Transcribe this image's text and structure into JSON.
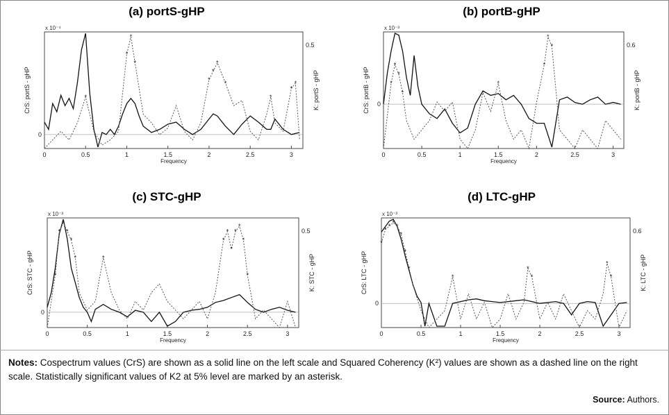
{
  "panels": [
    {
      "title": "(a) portS-gHP",
      "left_label": "CrS: portS - gHP",
      "right_label": "K: portS - gHP",
      "scale_label": "x 10⁻⁴",
      "xlabel": "Frequency",
      "zero_tick": "0",
      "right_tick": "0.5",
      "chart_data": {
        "type": "line",
        "xlabel": "Frequency",
        "xlim": [
          0,
          3.14
        ],
        "xticks": [
          "0",
          "0.5",
          "1",
          "1.5",
          "2",
          "2.5",
          "3"
        ],
        "series": [
          {
            "name": "CrS",
            "style": "solid",
            "x": [
              0.0,
              0.05,
              0.1,
              0.15,
              0.2,
              0.25,
              0.3,
              0.35,
              0.4,
              0.45,
              0.5,
              0.55,
              0.6,
              0.65,
              0.7,
              0.75,
              0.8,
              0.85,
              0.9,
              0.95,
              1.0,
              1.05,
              1.1,
              1.15,
              1.2,
              1.3,
              1.4,
              1.5,
              1.6,
              1.7,
              1.8,
              1.9,
              2.0,
              2.05,
              2.1,
              2.2,
              2.3,
              2.4,
              2.5,
              2.6,
              2.7,
              2.75,
              2.8,
              2.9,
              3.0,
              3.1
            ],
            "y": [
              0.12,
              0.05,
              0.3,
              0.22,
              0.38,
              0.28,
              0.35,
              0.25,
              0.5,
              0.82,
              0.98,
              0.4,
              0.05,
              -0.05,
              0.02,
              0.0,
              0.05,
              0.0,
              0.08,
              0.2,
              0.3,
              0.35,
              0.3,
              0.18,
              0.08,
              0.02,
              0.05,
              0.1,
              0.12,
              0.05,
              0.0,
              0.05,
              0.15,
              0.2,
              0.18,
              0.08,
              0.0,
              0.1,
              0.18,
              0.12,
              0.05,
              0.05,
              0.15,
              0.05,
              0.0,
              0.02
            ]
          },
          {
            "name": "K²",
            "style": "dashed",
            "x": [
              0.0,
              0.1,
              0.2,
              0.3,
              0.4,
              0.5,
              0.6,
              0.7,
              0.8,
              0.9,
              1.0,
              1.05,
              1.1,
              1.2,
              1.3,
              1.4,
              1.5,
              1.6,
              1.7,
              1.8,
              1.9,
              2.0,
              2.05,
              2.1,
              2.2,
              2.3,
              2.4,
              2.5,
              2.6,
              2.7,
              2.75,
              2.8,
              2.9,
              3.0,
              3.05,
              3.1
            ],
            "y": [
              0.0,
              0.05,
              0.1,
              0.05,
              0.15,
              0.3,
              0.1,
              0.02,
              0.05,
              0.1,
              0.55,
              0.65,
              0.5,
              0.2,
              0.15,
              0.08,
              0.12,
              0.25,
              0.1,
              0.05,
              0.15,
              0.4,
              0.45,
              0.5,
              0.38,
              0.25,
              0.28,
              0.1,
              0.05,
              0.2,
              0.3,
              0.15,
              0.1,
              0.35,
              0.38,
              0.05
            ]
          }
        ]
      }
    },
    {
      "title": "(b) portB-gHP",
      "left_label": "CrS: portB - gHP",
      "right_label": "K: portB - gHP",
      "scale_label": "x 10⁻³",
      "xlabel": "Frequency",
      "zero_tick": "0",
      "right_tick": "0.6",
      "chart_data": {
        "type": "line",
        "xlabel": "Frequency",
        "xlim": [
          0,
          3.14
        ],
        "xticks": [
          "0",
          "0.5",
          "1",
          "1.5",
          "2",
          "2.5",
          "3"
        ],
        "series": [
          {
            "name": "CrS",
            "style": "solid",
            "x": [
              0.0,
              0.05,
              0.1,
              0.15,
              0.2,
              0.25,
              0.3,
              0.35,
              0.4,
              0.45,
              0.5,
              0.6,
              0.7,
              0.8,
              0.9,
              1.0,
              1.1,
              1.2,
              1.3,
              1.4,
              1.5,
              1.6,
              1.7,
              1.8,
              1.9,
              2.0,
              2.1,
              2.2,
              2.3,
              2.4,
              2.5,
              2.6,
              2.7,
              2.8,
              2.9,
              3.0,
              3.1
            ],
            "y": [
              0.0,
              0.35,
              0.6,
              0.8,
              0.78,
              0.6,
              0.3,
              0.1,
              0.55,
              0.2,
              0.0,
              -0.1,
              -0.15,
              -0.05,
              -0.2,
              -0.3,
              -0.25,
              0.0,
              0.15,
              0.1,
              0.12,
              0.05,
              0.1,
              0.0,
              -0.15,
              -0.2,
              -0.2,
              -0.45,
              0.05,
              0.08,
              0.02,
              0.0,
              0.05,
              0.08,
              0.0,
              0.02,
              0.0
            ]
          },
          {
            "name": "K²",
            "style": "dashed",
            "x": [
              0.0,
              0.1,
              0.15,
              0.2,
              0.25,
              0.3,
              0.4,
              0.5,
              0.6,
              0.7,
              0.8,
              0.9,
              1.0,
              1.1,
              1.2,
              1.3,
              1.4,
              1.5,
              1.6,
              1.7,
              1.8,
              1.9,
              2.0,
              2.1,
              2.15,
              2.2,
              2.3,
              2.4,
              2.5,
              2.6,
              2.7,
              2.8,
              2.9,
              3.0,
              3.1
            ],
            "y": [
              0.0,
              0.35,
              0.45,
              0.4,
              0.3,
              0.15,
              0.05,
              0.1,
              0.15,
              0.25,
              0.2,
              0.25,
              0.05,
              0.0,
              0.1,
              0.3,
              0.2,
              0.35,
              0.15,
              0.05,
              0.1,
              0.0,
              0.25,
              0.45,
              0.6,
              0.55,
              0.1,
              0.05,
              0.0,
              0.1,
              0.05,
              0.0,
              0.15,
              0.1,
              0.05
            ]
          }
        ]
      }
    },
    {
      "title": "(c) STC-gHP",
      "left_label": "CrS: STC - gHP",
      "right_label": "K: STC - gHP",
      "scale_label": "x 10⁻³",
      "xlabel": "Frequency",
      "zero_tick": "0",
      "right_tick": "0.5",
      "chart_data": {
        "type": "line",
        "xlabel": "Frequency",
        "xlim": [
          0,
          3.14
        ],
        "xticks": [
          "0",
          "0.5",
          "1",
          "1.5",
          "2",
          "2.5",
          "3"
        ],
        "series": [
          {
            "name": "CrS",
            "style": "solid",
            "x": [
              0.0,
              0.05,
              0.1,
              0.15,
              0.2,
              0.25,
              0.3,
              0.35,
              0.4,
              0.45,
              0.5,
              0.55,
              0.6,
              0.7,
              0.8,
              0.9,
              1.0,
              1.1,
              1.2,
              1.3,
              1.4,
              1.5,
              1.6,
              1.7,
              1.8,
              1.9,
              2.0,
              2.1,
              2.2,
              2.3,
              2.4,
              2.5,
              2.6,
              2.7,
              2.8,
              2.9,
              3.0,
              3.1
            ],
            "y": [
              0.05,
              0.2,
              0.45,
              0.8,
              0.95,
              0.75,
              0.45,
              0.3,
              0.15,
              0.05,
              0.0,
              -0.02,
              0.03,
              0.08,
              0.03,
              0.0,
              -0.01,
              0.02,
              0.0,
              -0.02,
              0.0,
              -0.03,
              -0.02,
              0.0,
              0.02,
              0.03,
              0.05,
              0.1,
              0.12,
              0.15,
              0.18,
              0.1,
              0.03,
              0.0,
              0.03,
              0.05,
              0.02,
              0.0
            ]
          },
          {
            "name": "K²",
            "style": "dashed",
            "x": [
              0.0,
              0.1,
              0.15,
              0.2,
              0.25,
              0.3,
              0.35,
              0.4,
              0.5,
              0.6,
              0.7,
              0.8,
              0.9,
              1.0,
              1.1,
              1.2,
              1.3,
              1.4,
              1.5,
              1.6,
              1.7,
              1.8,
              1.9,
              2.0,
              2.1,
              2.2,
              2.25,
              2.3,
              2.35,
              2.4,
              2.45,
              2.5,
              2.6,
              2.7,
              2.8,
              2.9,
              3.0,
              3.1
            ],
            "y": [
              0.0,
              0.3,
              0.55,
              0.6,
              0.55,
              0.5,
              0.4,
              0.2,
              0.1,
              0.15,
              0.4,
              0.2,
              0.1,
              0.05,
              0.15,
              0.1,
              0.2,
              0.25,
              0.15,
              0.1,
              0.05,
              0.1,
              0.15,
              0.05,
              0.2,
              0.5,
              0.55,
              0.45,
              0.55,
              0.58,
              0.5,
              0.3,
              0.05,
              0.1,
              0.05,
              0.0,
              0.15,
              0.0
            ]
          }
        ]
      }
    },
    {
      "title": "(d) LTC-gHP",
      "left_label": "CrS: LTC - gHP",
      "right_label": "K: LTC - gHP",
      "scale_label": "x 10⁻³",
      "xlabel": "Frequency",
      "zero_tick": "0",
      "right_tick": "0.6",
      "chart_data": {
        "type": "line",
        "xlabel": "Frequency",
        "xlim": [
          0,
          3.14
        ],
        "ylim_left": [
          -0.5,
          4.8
        ],
        "ylim_right": [
          0.0,
          0.65
        ],
        "yticks_left": [
          "0",
          "2",
          "4"
        ],
        "yticks_right": [
          "0.2",
          "0.4",
          "0.6"
        ],
        "xticks": [
          "0",
          "0.5",
          "1",
          "1.5",
          "2",
          "2.5",
          "3"
        ],
        "series": [
          {
            "name": "CrS",
            "style": "solid",
            "x": [
              0.0,
              0.05,
              0.1,
              0.15,
              0.2,
              0.25,
              0.3,
              0.35,
              0.4,
              0.45,
              0.5,
              0.55,
              0.6,
              0.7,
              0.8,
              0.9,
              1.0,
              1.1,
              1.2,
              1.3,
              1.4,
              1.5,
              1.6,
              1.7,
              1.8,
              1.9,
              2.0,
              2.1,
              2.2,
              2.3,
              2.4,
              2.5,
              2.6,
              2.7,
              2.8,
              2.9,
              3.0,
              3.1
            ],
            "y": [
              3.9,
              4.2,
              4.5,
              4.6,
              4.2,
              3.5,
              2.6,
              1.8,
              1.0,
              0.4,
              0.05,
              -0.1,
              0.0,
              -0.1,
              -0.1,
              0.0,
              0.1,
              0.2,
              0.25,
              0.15,
              0.1,
              0.05,
              0.1,
              0.15,
              0.2,
              0.1,
              0.0,
              0.05,
              0.1,
              0.0,
              -0.05,
              0.0,
              0.1,
              0.05,
              -0.1,
              -0.05,
              0.0,
              0.05
            ]
          },
          {
            "name": "K²",
            "style": "dashed",
            "x": [
              0.0,
              0.05,
              0.1,
              0.15,
              0.2,
              0.25,
              0.3,
              0.35,
              0.4,
              0.5,
              0.6,
              0.7,
              0.8,
              0.9,
              1.0,
              1.1,
              1.2,
              1.3,
              1.4,
              1.5,
              1.6,
              1.7,
              1.8,
              1.85,
              1.9,
              2.0,
              2.1,
              2.2,
              2.3,
              2.4,
              2.5,
              2.6,
              2.7,
              2.8,
              2.85,
              2.9,
              3.0,
              3.1
            ],
            "y": [
              0.5,
              0.58,
              0.6,
              0.62,
              0.6,
              0.55,
              0.45,
              0.35,
              0.25,
              0.1,
              0.0,
              0.05,
              0.1,
              0.3,
              0.05,
              0.2,
              0.05,
              0.15,
              0.0,
              0.05,
              0.2,
              0.05,
              0.15,
              0.35,
              0.3,
              0.05,
              0.15,
              0.05,
              0.2,
              0.1,
              0.0,
              0.1,
              0.05,
              0.2,
              0.38,
              0.3,
              0.0,
              0.1
            ]
          }
        ]
      }
    }
  ],
  "notes": {
    "label": "Notes:",
    "text": "Cospectrum values (CrS) are shown as a solid line on the left scale and Squared Coherency (K²) values are shown as a dashed line on the right scale. Statistically significant values of K2 at 5% level are marked by an asterisk."
  },
  "source": {
    "label": "Source:",
    "text": "Authors."
  }
}
